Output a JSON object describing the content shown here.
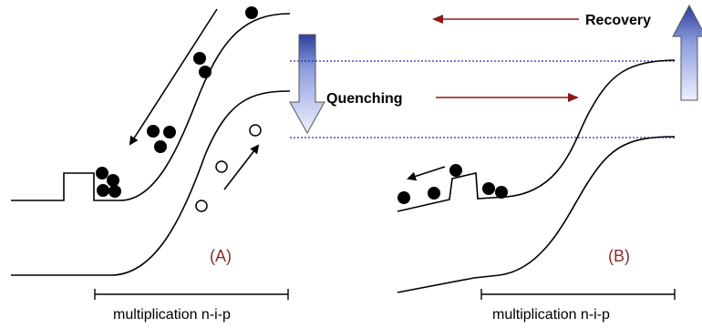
{
  "labels": {
    "recovery": "Recovery",
    "quenching": "Quenching",
    "panel_a": "(A)",
    "panel_b": "(B)",
    "axis_a": "multiplication n-i-p",
    "axis_b": "multiplication n-i-p"
  },
  "colors": {
    "band": "#000000",
    "dark_red": "#8b1a1a",
    "panel_label": "#8b2b2b",
    "dotted_line": "#2a2aa8",
    "arrow_fill_light": "#eef0ff",
    "arrow_fill_dark": "#2c3e9c"
  }
}
